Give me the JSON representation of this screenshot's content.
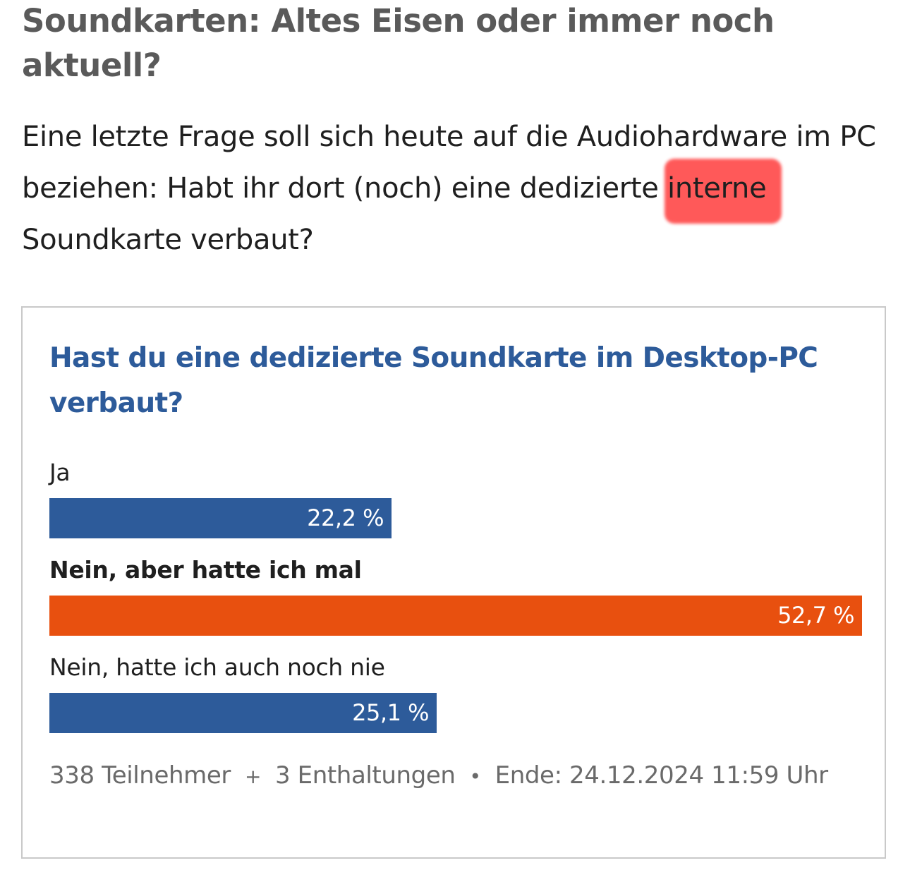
{
  "article": {
    "headline": "Soundkarten: Altes Eisen oder immer noch aktuell?",
    "lead_before": "Eine letzte Frage soll sich heute auf die Audiohardware im PC beziehen: Habt ihr dort (noch) eine dedizierte ",
    "lead_highlight": "interne",
    "lead_after": " Soundkarte verbaut?",
    "highlight_color": "#ff4b4b"
  },
  "poll": {
    "question": "Hast du eine dedizierte Soundkarte im Desktop-PC verbaut?",
    "options": [
      {
        "label": "Ja",
        "percent_label": "22,2 %",
        "percent": 22.2,
        "selected": false,
        "color": "#2d5b9a"
      },
      {
        "label": "Nein, aber hatte ich mal",
        "percent_label": "52,7 %",
        "percent": 52.7,
        "selected": true,
        "color": "#e8500f"
      },
      {
        "label": "Nein, hatte ich auch noch nie",
        "percent_label": "25,1 %",
        "percent": 25.1,
        "selected": false,
        "color": "#2d5b9a"
      }
    ],
    "footer": {
      "participants": "338 Teilnehmer",
      "plus": "+",
      "abstentions": "3 Enthaltungen",
      "bullet": "•",
      "end": "Ende: 24.12.2024 11:59 Uhr"
    }
  }
}
